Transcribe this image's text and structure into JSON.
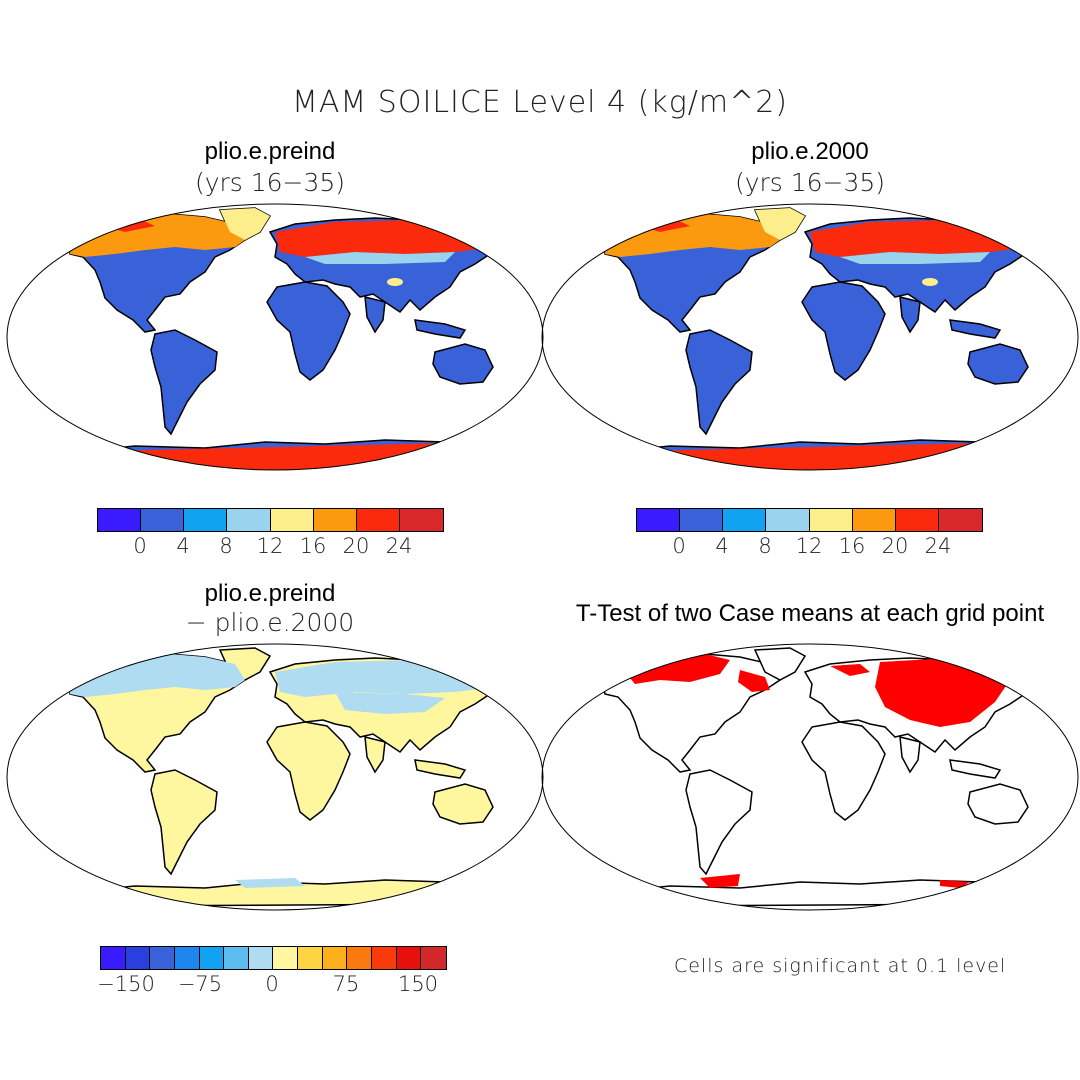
{
  "figure": {
    "title": "MAM SOILICE Level 4 (kg/m^2)",
    "note": "Cells are significant at 0.1 level"
  },
  "panels": [
    {
      "id": "preind",
      "title": "plio.e.preind",
      "subtitle": "(yrs 16−35)"
    },
    {
      "id": "y2000",
      "title": "plio.e.2000",
      "subtitle": "(yrs 16−35)"
    },
    {
      "id": "diff",
      "title": "plio.e.preind",
      "subtitle": "− plio.e.2000"
    },
    {
      "id": "ttest",
      "title": "T-Test of two Case means at each grid point"
    }
  ],
  "colorbars": {
    "absolute": {
      "colors": [
        "#3a1aff",
        "#3a62d8",
        "#12a2f2",
        "#99d3ee",
        "#fcee8a",
        "#fb9a0e",
        "#fb2a0c",
        "#d9282a"
      ],
      "ticks": [
        "0",
        "4",
        "8",
        "12",
        "16",
        "20",
        "24"
      ]
    },
    "difference": {
      "colors": [
        "#3a1aff",
        "#2a3fe0",
        "#3a62d8",
        "#1e86ee",
        "#12a2f2",
        "#5cbcef",
        "#afdcf0",
        "#fff6a0",
        "#fcd444",
        "#fbb01c",
        "#fb7a0e",
        "#fb3a0c",
        "#e8100c",
        "#d3282a"
      ],
      "ticks": [
        "−150",
        "−75",
        "0",
        "75",
        "150"
      ]
    }
  },
  "map_colors": {
    "land_low": "#3a62d8",
    "land_mid": "#12a2f2",
    "pale_blue": "#99d3ee",
    "yellow": "#fcee8a",
    "orange": "#fb9a0e",
    "red": "#fb2a0c",
    "dark_red": "#d9282a",
    "diff_land": "#fff6a0",
    "diff_cold": "#afdcf0",
    "significant": "#ff0000"
  }
}
